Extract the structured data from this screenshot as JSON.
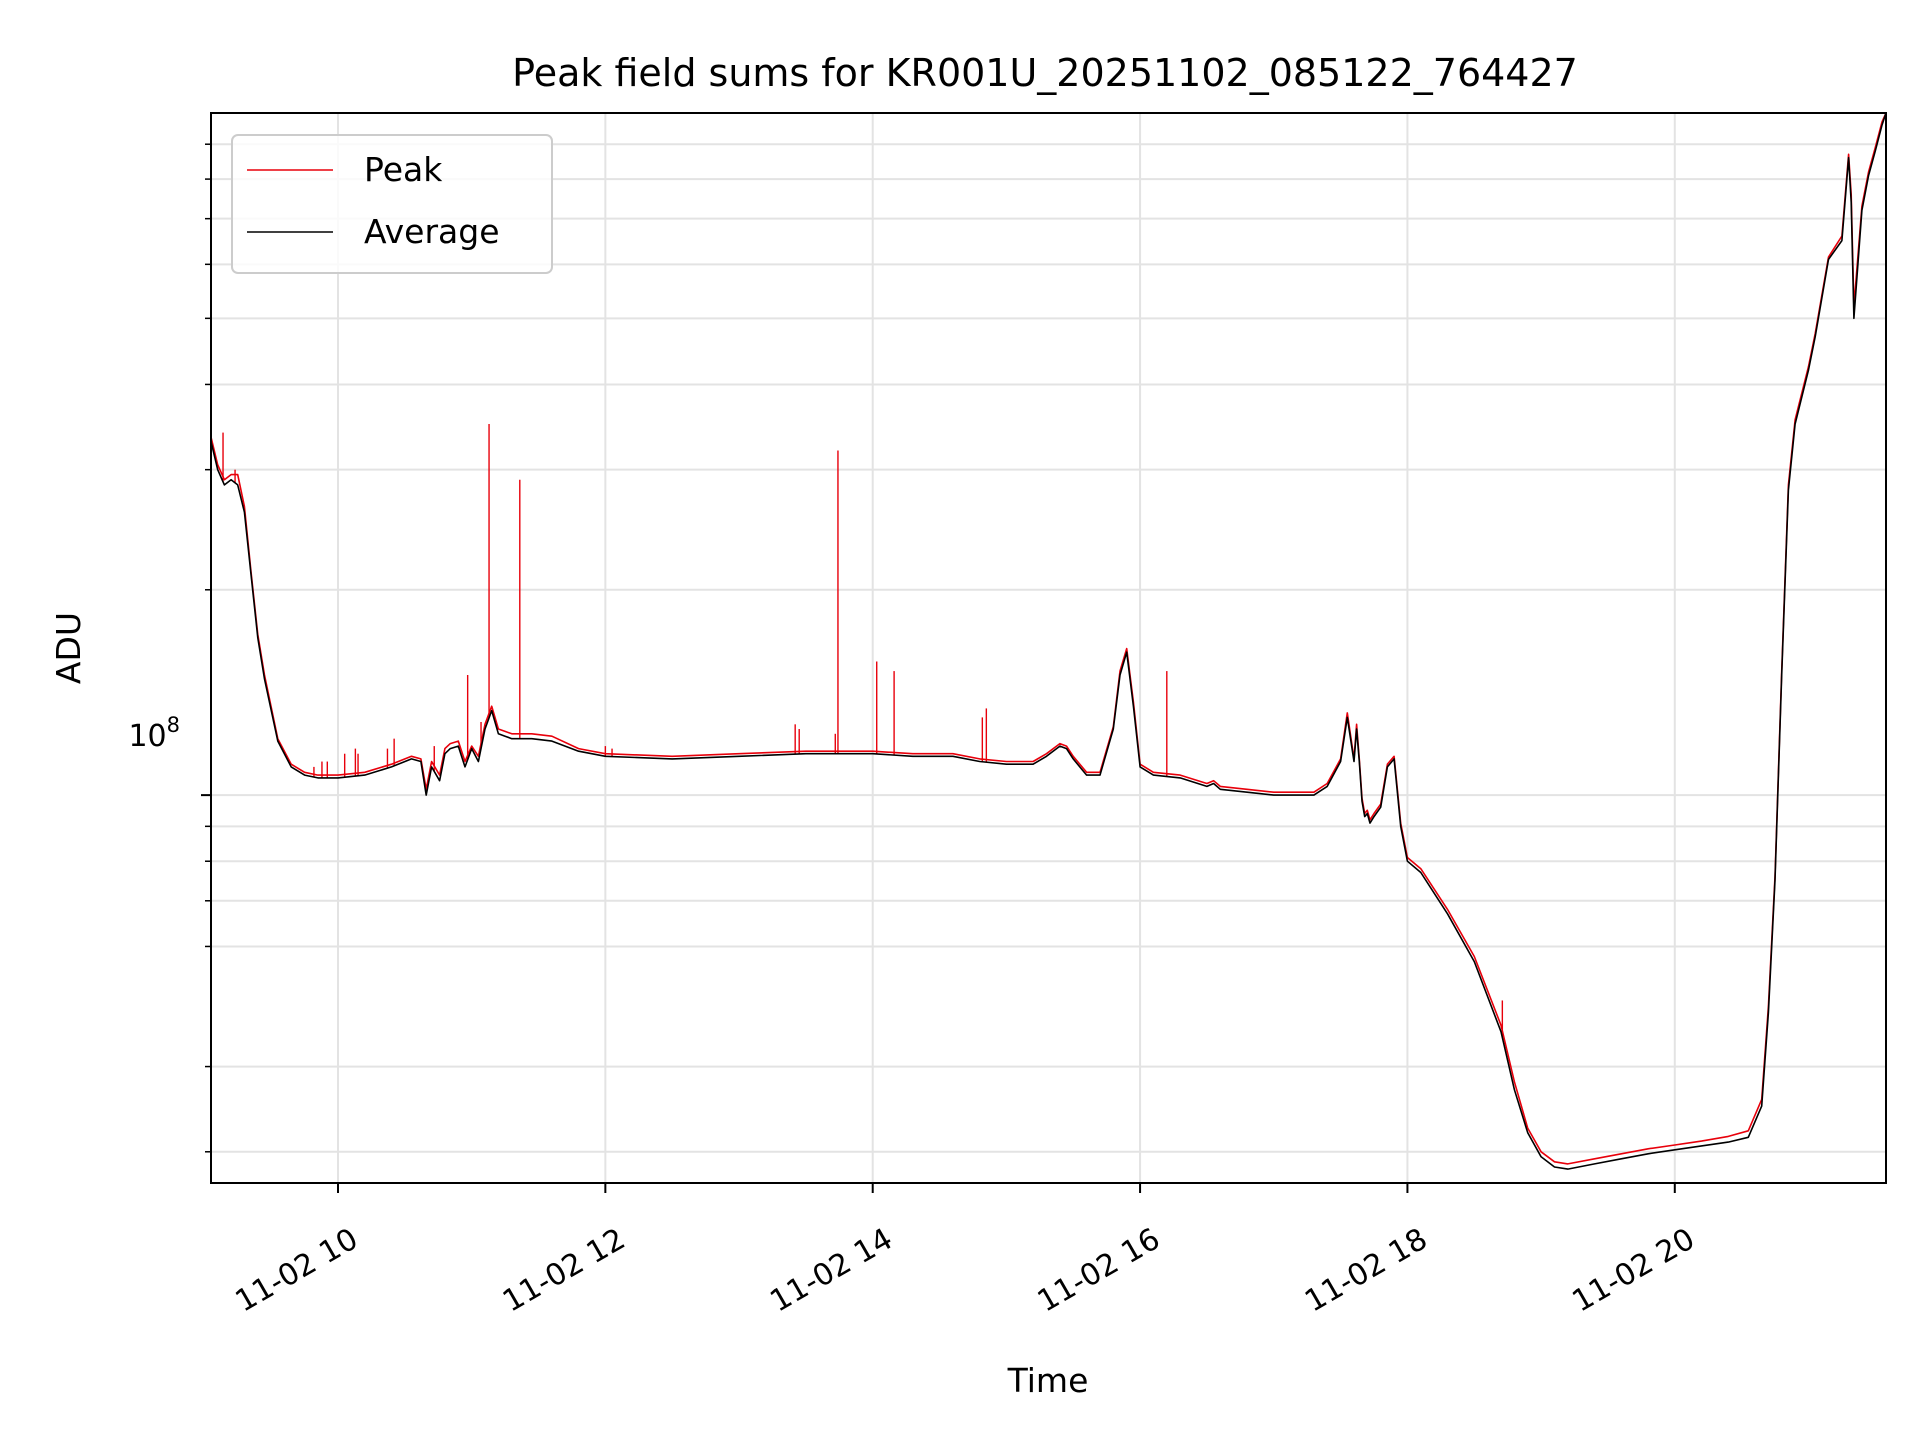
{
  "chart_data": {
    "type": "line",
    "title": "Peak field sums for KR001U_20251102_085122_764427",
    "xlabel": "Time",
    "ylabel": "ADU",
    "yscale": "log",
    "x_unit": "hours since 11-02 00:00",
    "xlim": [
      9.05,
      21.58
    ],
    "ylim": [
      27000000,
      1000000000
    ],
    "grid": true,
    "legend_position": "upper-left",
    "x_ticks": [
      {
        "value": 10,
        "label": "11-02 10"
      },
      {
        "value": 12,
        "label": "11-02 12"
      },
      {
        "value": 14,
        "label": "11-02 14"
      },
      {
        "value": 16,
        "label": "11-02 16"
      },
      {
        "value": 18,
        "label": "11-02 18"
      },
      {
        "value": 20,
        "label": "11-02 20"
      }
    ],
    "y_major_ticks": [
      {
        "value": 100000000,
        "base": "10",
        "exponent": "8"
      }
    ],
    "y_minor_ticks": [
      30000000,
      40000000,
      60000000,
      70000000,
      80000000,
      90000000,
      200000000,
      300000000,
      400000000,
      500000000,
      600000000,
      700000000,
      800000000,
      900000000
    ],
    "series": [
      {
        "name": "Average",
        "color": "#000000",
        "x": [
          9.05,
          9.1,
          9.15,
          9.2,
          9.25,
          9.3,
          9.35,
          9.4,
          9.45,
          9.55,
          9.65,
          9.75,
          9.85,
          10.0,
          10.2,
          10.4,
          10.55,
          10.62,
          10.66,
          10.7,
          10.76,
          10.8,
          10.84,
          10.9,
          10.95,
          11.0,
          11.05,
          11.1,
          11.15,
          11.2,
          11.25,
          11.3,
          11.45,
          11.6,
          11.8,
          12.0,
          12.5,
          13.0,
          13.5,
          14.0,
          14.3,
          14.6,
          14.8,
          15.0,
          15.2,
          15.3,
          15.4,
          15.45,
          15.5,
          15.6,
          15.7,
          15.8,
          15.85,
          15.9,
          15.95,
          16.0,
          16.1,
          16.3,
          16.5,
          16.55,
          16.6,
          16.8,
          17.0,
          17.2,
          17.3,
          17.4,
          17.5,
          17.55,
          17.6,
          17.62,
          17.64,
          17.66,
          17.68,
          17.7,
          17.72,
          17.75,
          17.8,
          17.85,
          17.9,
          17.95,
          18.0,
          18.1,
          18.3,
          18.5,
          18.7,
          18.8,
          18.9,
          19.0,
          19.1,
          19.2,
          19.4,
          19.6,
          19.8,
          20.0,
          20.2,
          20.4,
          20.55,
          20.65,
          20.7,
          20.75,
          20.8,
          20.85,
          20.9,
          21.0,
          21.05,
          21.15,
          21.25,
          21.3,
          21.32,
          21.34,
          21.4,
          21.45,
          21.5,
          21.55,
          21.58
        ],
        "values": [
          330000000,
          300000000,
          285000000,
          290000000,
          285000000,
          260000000,
          210000000,
          170000000,
          148000000,
          120000000,
          110000000,
          107000000,
          106000000,
          106000000,
          107000000,
          110000000,
          113000000,
          112000000,
          100000000,
          110000000,
          105000000,
          115000000,
          117000000,
          118000000,
          110000000,
          117000000,
          112000000,
          125000000,
          133000000,
          123000000,
          122000000,
          121000000,
          121000000,
          120000000,
          116000000,
          114000000,
          113000000,
          114000000,
          115000000,
          115000000,
          114000000,
          114000000,
          112000000,
          111000000,
          111000000,
          114000000,
          118000000,
          117000000,
          113000000,
          107000000,
          107000000,
          125000000,
          150000000,
          162000000,
          135000000,
          110000000,
          107000000,
          106000000,
          103000000,
          104000000,
          102000000,
          101000000,
          100000000,
          100000000,
          100000000,
          103000000,
          112000000,
          130000000,
          112000000,
          125000000,
          112000000,
          98000000,
          93000000,
          94000000,
          91000000,
          93000000,
          96000000,
          110000000,
          113000000,
          90000000,
          80000000,
          77000000,
          67000000,
          57000000,
          45000000,
          37000000,
          32000000,
          29500000,
          28500000,
          28300000,
          28800000,
          29300000,
          29800000,
          30200000,
          30600000,
          31000000,
          31500000,
          35000000,
          48000000,
          75000000,
          150000000,
          280000000,
          350000000,
          420000000,
          470000000,
          610000000,
          650000000,
          860000000,
          740000000,
          500000000,
          720000000,
          810000000,
          880000000,
          960000000,
          1000000000
        ]
      },
      {
        "name": "Peak",
        "color": "#e8000b",
        "x": [
          9.05,
          9.1,
          9.15,
          9.2,
          9.25,
          9.3,
          9.35,
          9.4,
          9.45,
          9.55,
          9.65,
          9.75,
          9.85,
          10.0,
          10.2,
          10.4,
          10.55,
          10.62,
          10.66,
          10.7,
          10.76,
          10.8,
          10.84,
          10.9,
          10.95,
          11.0,
          11.05,
          11.1,
          11.15,
          11.2,
          11.25,
          11.3,
          11.45,
          11.6,
          11.8,
          12.0,
          12.5,
          13.0,
          13.5,
          14.0,
          14.3,
          14.6,
          14.8,
          15.0,
          15.2,
          15.3,
          15.4,
          15.45,
          15.5,
          15.6,
          15.7,
          15.8,
          15.85,
          15.9,
          15.95,
          16.0,
          16.1,
          16.3,
          16.5,
          16.55,
          16.6,
          16.8,
          17.0,
          17.2,
          17.3,
          17.4,
          17.5,
          17.55,
          17.6,
          17.62,
          17.64,
          17.66,
          17.68,
          17.7,
          17.72,
          17.75,
          17.8,
          17.85,
          17.9,
          17.95,
          18.0,
          18.1,
          18.3,
          18.5,
          18.7,
          18.8,
          18.9,
          19.0,
          19.1,
          19.2,
          19.4,
          19.6,
          19.8,
          20.0,
          20.2,
          20.4,
          20.55,
          20.65,
          20.7,
          20.75,
          20.8,
          20.85,
          20.9,
          21.0,
          21.05,
          21.15,
          21.25,
          21.3,
          21.32,
          21.34,
          21.4,
          21.45,
          21.5,
          21.55,
          21.58
        ],
        "values": [
          335000000,
          305000000,
          290000000,
          295000000,
          295000000,
          265000000,
          212000000,
          172000000,
          150000000,
          121000000,
          111000000,
          108000000,
          107000000,
          107000000,
          108000000,
          111000000,
          114000000,
          113000000,
          102000000,
          112000000,
          107000000,
          117000000,
          119000000,
          120000000,
          112000000,
          118000000,
          114000000,
          127000000,
          135000000,
          125000000,
          124000000,
          123000000,
          123000000,
          122000000,
          117000000,
          115000000,
          114000000,
          115000000,
          116000000,
          116000000,
          115000000,
          115000000,
          113000000,
          112000000,
          112000000,
          115000000,
          119000000,
          118000000,
          114000000,
          108000000,
          108000000,
          126000000,
          152000000,
          164000000,
          137000000,
          111000000,
          108000000,
          107000000,
          104000000,
          105000000,
          103000000,
          102000000,
          101000000,
          101000000,
          101000000,
          104000000,
          113000000,
          132000000,
          113000000,
          127000000,
          113000000,
          99000000,
          94000000,
          95000000,
          92000000,
          94000000,
          97000000,
          111000000,
          114000000,
          91000000,
          81000000,
          78000000,
          68000000,
          58000000,
          46000000,
          38000000,
          32500000,
          30000000,
          29000000,
          28800000,
          29300000,
          29800000,
          30300000,
          30700000,
          31100000,
          31600000,
          32200000,
          35800000,
          49000000,
          76000000,
          152000000,
          285000000,
          355000000,
          425000000,
          475000000,
          615000000,
          660000000,
          870000000,
          760000000,
          520000000,
          730000000,
          820000000,
          890000000,
          970000000,
          1000000000
        ]
      }
    ],
    "peak_spikes": [
      {
        "x": 9.14,
        "value": 340000000
      },
      {
        "x": 9.23,
        "value": 300000000
      },
      {
        "x": 9.82,
        "value": 110000000
      },
      {
        "x": 9.88,
        "value": 112000000
      },
      {
        "x": 9.92,
        "value": 112000000
      },
      {
        "x": 10.05,
        "value": 115000000
      },
      {
        "x": 10.13,
        "value": 117000000
      },
      {
        "x": 10.15,
        "value": 115000000
      },
      {
        "x": 10.37,
        "value": 117000000
      },
      {
        "x": 10.42,
        "value": 121000000
      },
      {
        "x": 10.72,
        "value": 118000000
      },
      {
        "x": 10.97,
        "value": 150000000
      },
      {
        "x": 11.07,
        "value": 128000000
      },
      {
        "x": 11.13,
        "value": 350000000
      },
      {
        "x": 11.36,
        "value": 290000000
      },
      {
        "x": 12.0,
        "value": 118000000
      },
      {
        "x": 12.05,
        "value": 117000000
      },
      {
        "x": 13.42,
        "value": 127000000
      },
      {
        "x": 13.45,
        "value": 125000000
      },
      {
        "x": 13.72,
        "value": 123000000
      },
      {
        "x": 13.74,
        "value": 320000000
      },
      {
        "x": 14.03,
        "value": 157000000
      },
      {
        "x": 14.16,
        "value": 152000000
      },
      {
        "x": 14.82,
        "value": 130000000
      },
      {
        "x": 14.85,
        "value": 134000000
      },
      {
        "x": 16.2,
        "value": 152000000
      },
      {
        "x": 18.71,
        "value": 50000000
      }
    ]
  }
}
